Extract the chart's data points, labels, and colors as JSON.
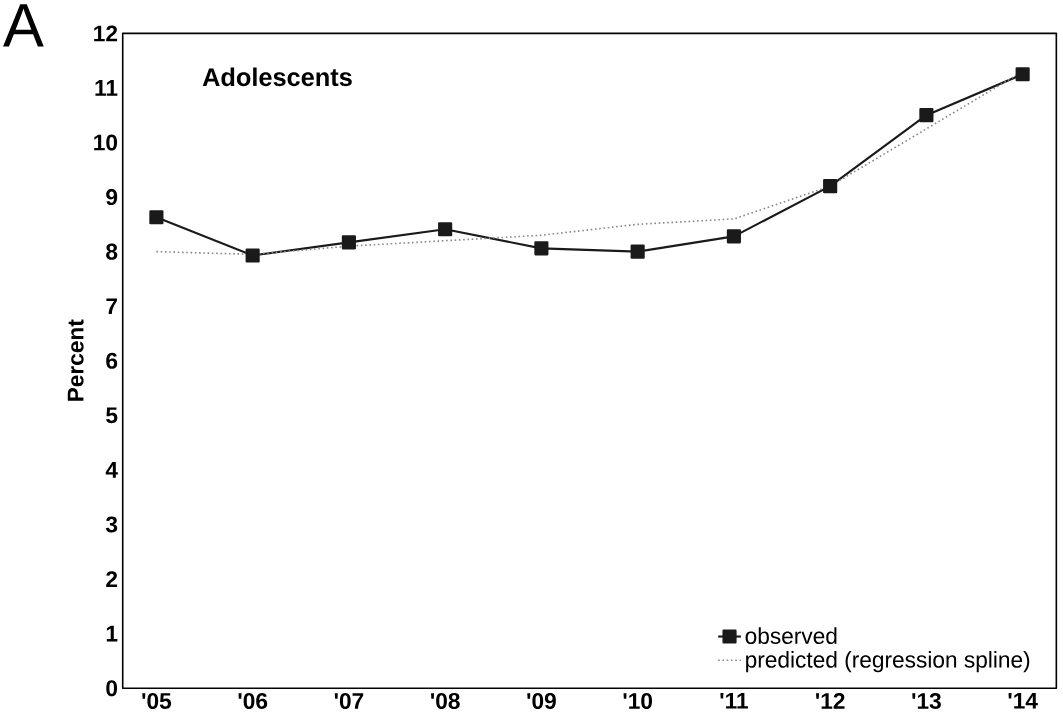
{
  "chart_data": {
    "type": "line",
    "title": "Adolescents",
    "ylabel": "Percent",
    "annotations": [
      "A"
    ],
    "categories": [
      "'05",
      "'06",
      "'07",
      "'08",
      "'09",
      "'10",
      "'11",
      "'12",
      "'13",
      "'14"
    ],
    "ylim": [
      0,
      12
    ],
    "yticks": [
      0,
      1,
      2,
      3,
      4,
      5,
      6,
      7,
      8,
      9,
      10,
      11,
      12
    ],
    "series": [
      {
        "name": "observed",
        "color": "#1a1a1a",
        "marker": "square",
        "line_style": "solid",
        "values": [
          8.63,
          7.93,
          8.17,
          8.41,
          8.06,
          8.0,
          8.28,
          9.2,
          10.5,
          11.25
        ]
      },
      {
        "name": "predicted (regression spline)",
        "color": "#888888",
        "marker": "none",
        "line_style": "dotted",
        "values": [
          8.0,
          7.95,
          8.1,
          8.2,
          8.3,
          8.5,
          8.6,
          9.2,
          10.25,
          11.3
        ]
      }
    ],
    "grid": false,
    "legend": "bottom right"
  }
}
